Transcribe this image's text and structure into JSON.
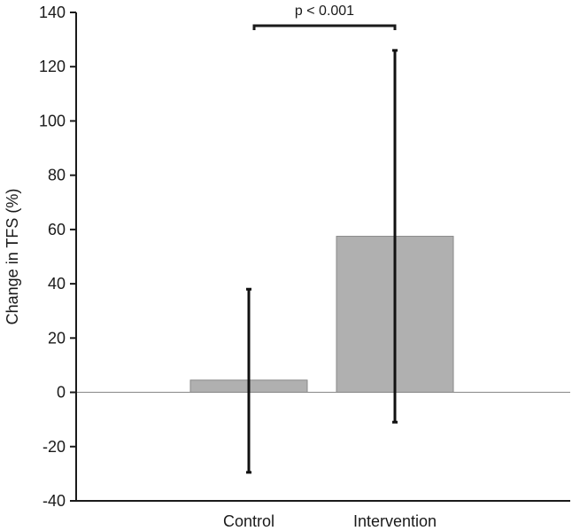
{
  "chart_data": {
    "type": "bar",
    "categories": [
      "Control",
      "Intervention"
    ],
    "values": [
      4.5,
      57.5
    ],
    "error_bars": [
      {
        "lower": -29.5,
        "upper": 38
      },
      {
        "lower": -11,
        "upper": 126
      }
    ],
    "ylabel": "Change in TFS (%)",
    "xlabel": "",
    "ylim": [
      -40,
      140
    ],
    "yticks": [
      140,
      120,
      100,
      80,
      60,
      40,
      20,
      0,
      -20,
      -40
    ],
    "bar_color": "#b0b0b0",
    "grid": false,
    "annotation": {
      "text": "p < 0.001",
      "between": [
        "Control",
        "Intervention"
      ]
    }
  }
}
